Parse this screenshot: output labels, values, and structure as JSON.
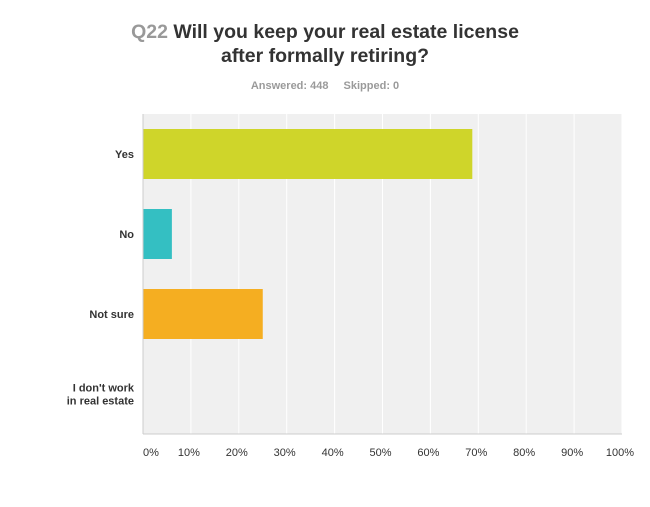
{
  "header": {
    "question_number": "Q22",
    "title_line1": "Will you keep your real estate license",
    "title_line2": "after formally retiring?"
  },
  "stats": {
    "answered": "Answered: 448",
    "skipped": "Skipped: 0"
  },
  "chart_data": {
    "type": "bar",
    "orientation": "horizontal",
    "title": "Will you keep your real estate license after formally retiring?",
    "categories": [
      [
        "Yes"
      ],
      [
        "No"
      ],
      [
        "Not sure"
      ],
      [
        "I don't work",
        "in real estate"
      ]
    ],
    "values": [
      68.75,
      6.03,
      25.0,
      0.0
    ],
    "colors": [
      "#cfd52a",
      "#34bfc2",
      "#f5ae21",
      "#d9d9d9"
    ],
    "xlim": [
      0,
      100
    ],
    "xticks": [
      "0%",
      "10%",
      "20%",
      "30%",
      "40%",
      "50%",
      "60%",
      "70%",
      "80%",
      "90%",
      "100%"
    ],
    "grid": true,
    "plot_background": "#f0f0f0",
    "xlabel": "",
    "ylabel": ""
  }
}
